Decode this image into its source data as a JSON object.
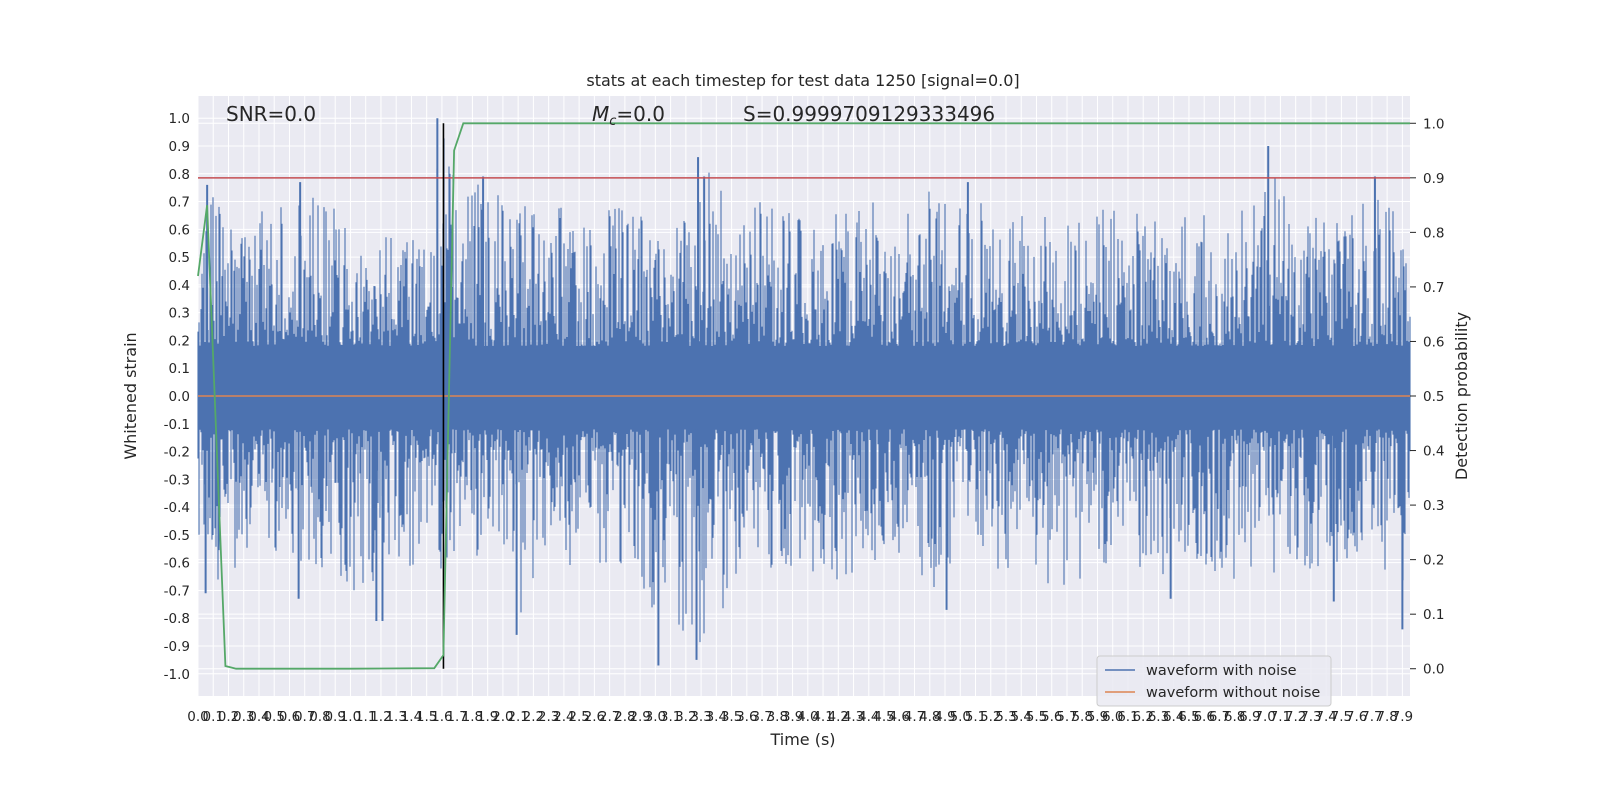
{
  "chart_data": {
    "type": "line",
    "title": "stats at each timestep for test data 1250 [signal=0.0]",
    "xlabel": "Time (s)",
    "ylabel": "Whitened strain",
    "y2label": "Detection probability",
    "xlim": [
      0.0,
      7.95
    ],
    "ylim": [
      -1.08,
      1.08
    ],
    "y2lim": [
      -0.05,
      1.05
    ],
    "xticks": [
      "0.0",
      "0.1",
      "0.2",
      "0.3",
      "0.4",
      "0.5",
      "0.6",
      "0.7",
      "0.8",
      "0.9",
      "1.0",
      "1.1",
      "1.2",
      "1.3",
      "1.4",
      "1.5",
      "1.6",
      "1.7",
      "1.8",
      "1.9",
      "2.0",
      "2.1",
      "2.2",
      "2.3",
      "2.4",
      "2.5",
      "2.6",
      "2.7",
      "2.8",
      "2.9",
      "3.0",
      "3.1",
      "3.2",
      "3.3",
      "3.4",
      "3.5",
      "3.6",
      "3.7",
      "3.8",
      "3.9",
      "4.0",
      "4.1",
      "4.2",
      "4.3",
      "4.4",
      "4.5",
      "4.6",
      "4.7",
      "4.8",
      "4.9",
      "5.0",
      "5.1",
      "5.2",
      "5.3",
      "5.4",
      "5.5",
      "5.6",
      "5.7",
      "5.8",
      "5.9",
      "6.0",
      "6.1",
      "6.2",
      "6.3",
      "6.4",
      "6.5",
      "6.6",
      "6.7",
      "6.8",
      "6.9",
      "7.0",
      "7.1",
      "7.2",
      "7.3",
      "7.4",
      "7.5",
      "7.6",
      "7.7",
      "7.8",
      "7.9"
    ],
    "yticks": [
      "1.0",
      "0.9",
      "0.8",
      "0.7",
      "0.6",
      "0.5",
      "0.4",
      "0.3",
      "0.2",
      "0.1",
      "0.0",
      "-0.1",
      "-0.2",
      "-0.3",
      "-0.4",
      "-0.5",
      "-0.6",
      "-0.7",
      "-0.8",
      "-0.9",
      "-1.0"
    ],
    "y2ticks": [
      "1.0",
      "0.9",
      "0.8",
      "0.7",
      "0.6",
      "0.5",
      "0.4",
      "0.3",
      "0.2",
      "0.1",
      "0.0"
    ],
    "annotations": {
      "snr": "SNR=0.0",
      "mc_symbol": "M",
      "mc_sub": "c",
      "mc_value": "=0.0",
      "s": "S=0.9999709129333496"
    },
    "threshold": 0.9,
    "detection_time": 1.61,
    "noise_envelope": {
      "x": [
        0.0,
        0.1,
        0.2,
        0.4,
        0.7,
        0.9,
        1.1,
        1.3,
        1.5,
        1.6,
        1.7,
        1.9,
        2.1,
        2.3,
        2.5,
        2.8,
        3.1,
        3.3,
        3.6,
        3.9,
        4.2,
        4.5,
        4.8,
        5.1,
        5.4,
        5.7,
        6.0,
        6.3,
        6.6,
        6.9,
        7.05,
        7.2,
        7.5,
        7.8,
        7.95
      ],
      "upper": [
        0.5,
        0.76,
        0.62,
        0.69,
        0.76,
        0.72,
        0.58,
        0.68,
        0.55,
        1.0,
        0.8,
        0.79,
        0.7,
        0.75,
        0.66,
        0.72,
        0.73,
        0.86,
        0.74,
        0.69,
        0.72,
        0.73,
        0.77,
        0.74,
        0.68,
        0.66,
        0.72,
        0.68,
        0.73,
        0.73,
        0.9,
        0.68,
        0.66,
        0.79,
        0.56
      ],
      "lower": [
        -0.62,
        -0.71,
        -0.67,
        -0.6,
        -0.73,
        -0.65,
        -0.81,
        -0.68,
        -0.67,
        -0.66,
        -0.6,
        -0.62,
        -0.85,
        -0.67,
        -0.63,
        -0.66,
        -0.97,
        -0.94,
        -0.71,
        -0.64,
        -0.71,
        -0.68,
        -0.77,
        -0.64,
        -0.67,
        -0.75,
        -0.62,
        -0.68,
        -0.66,
        -0.72,
        -0.67,
        -0.62,
        -0.73,
        -0.66,
        -0.84
      ],
      "spikes": [
        [
          0.06,
          0.76
        ],
        [
          0.05,
          -0.71
        ],
        [
          0.67,
          0.77
        ],
        [
          0.66,
          -0.73
        ],
        [
          1.17,
          -0.81
        ],
        [
          1.21,
          -0.81
        ],
        [
          1.57,
          1.0
        ],
        [
          1.65,
          0.8
        ],
        [
          1.87,
          0.79
        ],
        [
          2.09,
          -0.86
        ],
        [
          3.02,
          -0.97
        ],
        [
          3.28,
          0.86
        ],
        [
          3.27,
          -0.95
        ],
        [
          3.32,
          0.79
        ],
        [
          4.91,
          -0.77
        ],
        [
          5.05,
          0.77
        ],
        [
          6.38,
          -0.73
        ],
        [
          7.02,
          0.9
        ],
        [
          7.45,
          -0.74
        ],
        [
          7.72,
          0.79
        ],
        [
          7.9,
          -0.84
        ]
      ]
    },
    "series": [
      {
        "name": "waveform with noise",
        "color": "#4c72b0"
      },
      {
        "name": "waveform without noise",
        "color": "#dd8452",
        "y": 0.0
      },
      {
        "name": "",
        "color": "#55a868",
        "axis": "right",
        "x": [
          0.0,
          0.06,
          0.18,
          0.25,
          1.0,
          1.55,
          1.61,
          1.68,
          1.74,
          7.95
        ],
        "y": [
          0.72,
          0.85,
          0.005,
          0.0,
          0.0,
          0.001,
          0.025,
          0.95,
          1.0,
          1.0
        ]
      }
    ],
    "legend": {
      "position": "lower right",
      "entries": [
        "waveform with noise",
        "waveform without noise"
      ]
    },
    "colors": {
      "threshold": "#c44e52",
      "vline": "#000000",
      "grid_bg": "#eaeaf2"
    },
    "grid": true
  }
}
